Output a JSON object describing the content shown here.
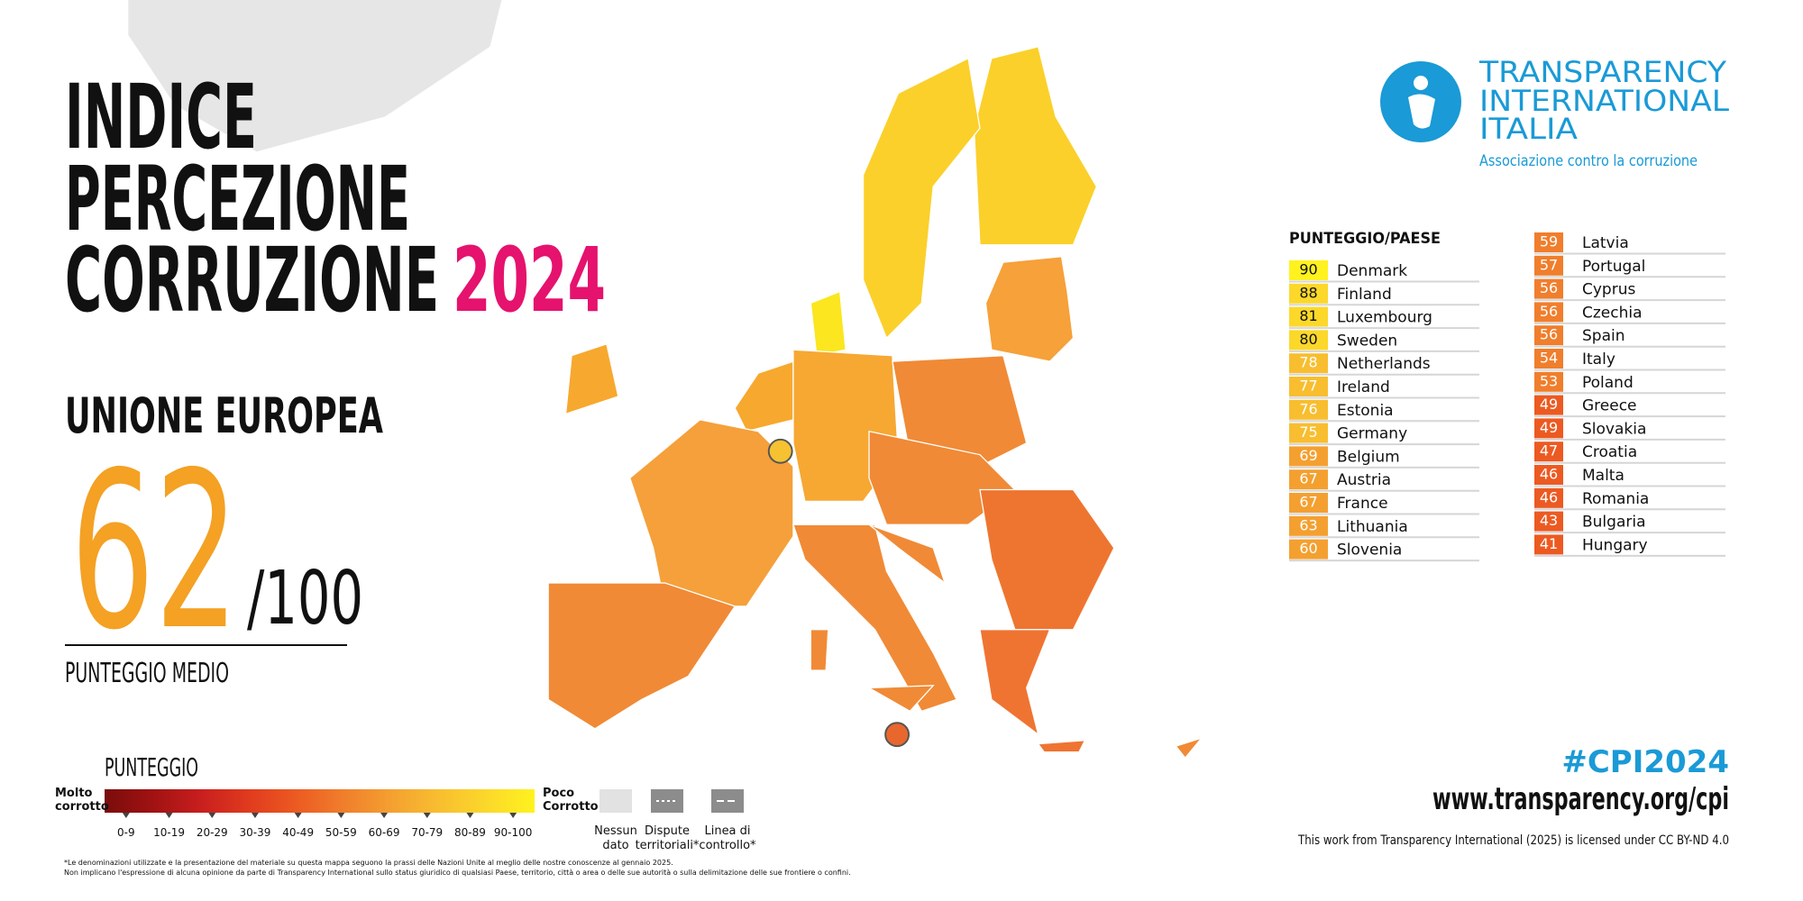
{
  "title": {
    "line1": "INDICE",
    "line2": "PERCEZIONE",
    "line3": "CORRUZIONE",
    "year": "2024"
  },
  "region": "UNIONE EUROPEA",
  "average": {
    "score": 62,
    "max": "/100",
    "label": "PUNTEGGIO MEDIO"
  },
  "logo": {
    "line1": "TRANSPARENCY",
    "line2": "INTERNATIONAL",
    "line3": "ITALIA",
    "tagline": "Associazione contro la corruzione"
  },
  "ranking": {
    "header": "PUNTEGGIO/PAESE",
    "columns": [
      [
        {
          "score": 90,
          "country": "Denmark"
        },
        {
          "score": 88,
          "country": "Finland"
        },
        {
          "score": 81,
          "country": "Luxembourg"
        },
        {
          "score": 80,
          "country": "Sweden"
        },
        {
          "score": 78,
          "country": "Netherlands"
        },
        {
          "score": 77,
          "country": "Ireland"
        },
        {
          "score": 76,
          "country": "Estonia"
        },
        {
          "score": 75,
          "country": "Germany"
        },
        {
          "score": 69,
          "country": "Belgium"
        },
        {
          "score": 67,
          "country": "Austria"
        },
        {
          "score": 67,
          "country": "France"
        },
        {
          "score": 63,
          "country": "Lithuania"
        },
        {
          "score": 60,
          "country": "Slovenia"
        }
      ],
      [
        {
          "score": 59,
          "country": "Latvia"
        },
        {
          "score": 57,
          "country": "Portugal"
        },
        {
          "score": 56,
          "country": "Cyprus"
        },
        {
          "score": 56,
          "country": "Czechia"
        },
        {
          "score": 56,
          "country": "Spain"
        },
        {
          "score": 54,
          "country": "Italy"
        },
        {
          "score": 53,
          "country": "Poland"
        },
        {
          "score": 49,
          "country": "Greece"
        },
        {
          "score": 49,
          "country": "Slovakia"
        },
        {
          "score": 47,
          "country": "Croatia"
        },
        {
          "score": 46,
          "country": "Malta"
        },
        {
          "score": 46,
          "country": "Romania"
        },
        {
          "score": 43,
          "country": "Bulgaria"
        },
        {
          "score": 41,
          "country": "Hungary"
        }
      ]
    ]
  },
  "legend": {
    "title": "PUNTEGGIO",
    "low_label": [
      "Molto",
      "corrotto"
    ],
    "high_label": [
      "Poco",
      "Corrotto"
    ],
    "bins": [
      {
        "label": "0-9",
        "color": "#7a0c0c"
      },
      {
        "label": "10-19",
        "color": "#a01212"
      },
      {
        "label": "20-29",
        "color": "#c81e1e"
      },
      {
        "label": "30-39",
        "color": "#e03a1e"
      },
      {
        "label": "40-49",
        "color": "#ec5a22"
      },
      {
        "label": "50-59",
        "color": "#f07e2c"
      },
      {
        "label": "60-69",
        "color": "#f4a030"
      },
      {
        "label": "70-79",
        "color": "#f8be30"
      },
      {
        "label": "80-89",
        "color": "#fbd82a"
      },
      {
        "label": "90-100",
        "color": "#fff21f"
      }
    ],
    "other": [
      [
        "Nessun",
        "dato"
      ],
      [
        "Dispute",
        "territoriali*"
      ],
      [
        "Linea di",
        "controllo*"
      ]
    ]
  },
  "footnote": [
    "*Le denominazioni utilizzate e la presentazione del materiale su questa mappa seguono la prassi delle Nazioni Unite al meglio delle nostre conoscenze al gennaio 2025.",
    "Non implicano l'espressione di alcuna opinione da parte di Transparency International sullo status giuridico di qualsiasi Paese, territorio, città o area o delle sue autorità o sulla delimitazione delle sue frontiere o confini."
  ],
  "hashtag": "#CPI2024",
  "url": "www.transparency.org/cpi",
  "license": "This work from Transparency International (2025) is licensed under CC BY-ND 4.0"
}
